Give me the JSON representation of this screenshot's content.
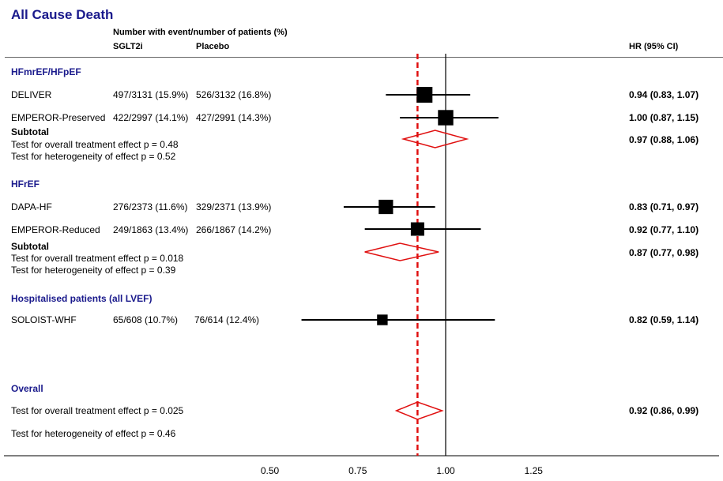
{
  "title": "All Cause Death",
  "header": {
    "events_label": "Number with event/number of patients (%)",
    "col_sglt2i": "SGLT2i",
    "col_placebo": "Placebo",
    "col_hr": "HR (95% CI)"
  },
  "groups": [
    {
      "name": "HFmrEF/HFpEF",
      "studies": [
        {
          "name": "DELIVER",
          "sglt2i": "497/3131 (15.9%)",
          "placebo": "526/3132 (16.8%)",
          "hr_text": "0.94 (0.83, 1.07)"
        },
        {
          "name": "EMPEROR-Preserved",
          "sglt2i": "422/2997 (14.1%)",
          "placebo": "427/2991 (14.3%)",
          "hr_text": "1.00 (0.87, 1.15)"
        }
      ],
      "subtotal_label": "Subtotal",
      "subtotal_hr_text": "0.97 (0.88, 1.06)",
      "test_overall": "Test for overall treatment effect p = 0.48",
      "test_het": "Test for heterogeneity of effect p = 0.52"
    },
    {
      "name": "HFrEF",
      "studies": [
        {
          "name": "DAPA-HF",
          "sglt2i": "276/2373 (11.6%)",
          "placebo": "329/2371 (13.9%)",
          "hr_text": "0.83 (0.71, 0.97)"
        },
        {
          "name": "EMPEROR-Reduced",
          "sglt2i": "249/1863 (13.4%)",
          "placebo": "266/1867 (14.2%)",
          "hr_text": "0.92 (0.77, 1.10)"
        }
      ],
      "subtotal_label": "Subtotal",
      "subtotal_hr_text": "0.87 (0.77, 0.98)",
      "test_overall": "Test for overall treatment effect p = 0.018",
      "test_het": "Test for heterogeneity of effect p = 0.39"
    },
    {
      "name": "Hospitalised patients (all LVEF)",
      "studies": [
        {
          "name": "SOLOIST-WHF",
          "sglt2i": "65/608 (10.7%)",
          "placebo": "76/614 (12.4%)",
          "hr_text": "0.82  (0.59, 1.14)"
        }
      ]
    }
  ],
  "overall": {
    "label": "Overall",
    "test_overall": "Test for overall treatment effect  p = 0.025",
    "test_het": "Test for heterogeneity of effect  p = 0.46",
    "hr_text": "0.92 (0.86, 0.99)"
  },
  "colors": {
    "title": "#1a1a8c",
    "diamond": "#e01010",
    "reference": "#e01010",
    "marker": "#000000"
  },
  "chart_data": {
    "type": "forest",
    "x_ticks": [
      "0.50",
      "0.75",
      "1.00",
      "1.25"
    ],
    "xlim": [
      0.0,
      1.5
    ],
    "null_line": 1.0,
    "overall_reference_line": 0.92,
    "studies": [
      {
        "name": "DELIVER",
        "hr": 0.94,
        "lo": 0.83,
        "hi": 1.07,
        "weight": 1.0
      },
      {
        "name": "EMPEROR-Preserved",
        "hr": 1.0,
        "lo": 0.87,
        "hi": 1.15,
        "weight": 0.95
      },
      {
        "name": "DAPA-HF",
        "hr": 0.83,
        "lo": 0.71,
        "hi": 0.97,
        "weight": 0.85
      },
      {
        "name": "EMPEROR-Reduced",
        "hr": 0.92,
        "lo": 0.77,
        "hi": 1.1,
        "weight": 0.75
      },
      {
        "name": "SOLOIST-WHF",
        "hr": 0.82,
        "lo": 0.59,
        "hi": 1.14,
        "weight": 0.45
      }
    ],
    "pooled": [
      {
        "name": "HFmrEF/HFpEF subtotal",
        "hr": 0.97,
        "lo": 0.88,
        "hi": 1.06
      },
      {
        "name": "HFrEF subtotal",
        "hr": 0.87,
        "lo": 0.77,
        "hi": 0.98
      },
      {
        "name": "Overall",
        "hr": 0.92,
        "lo": 0.86,
        "hi": 0.99
      }
    ]
  }
}
